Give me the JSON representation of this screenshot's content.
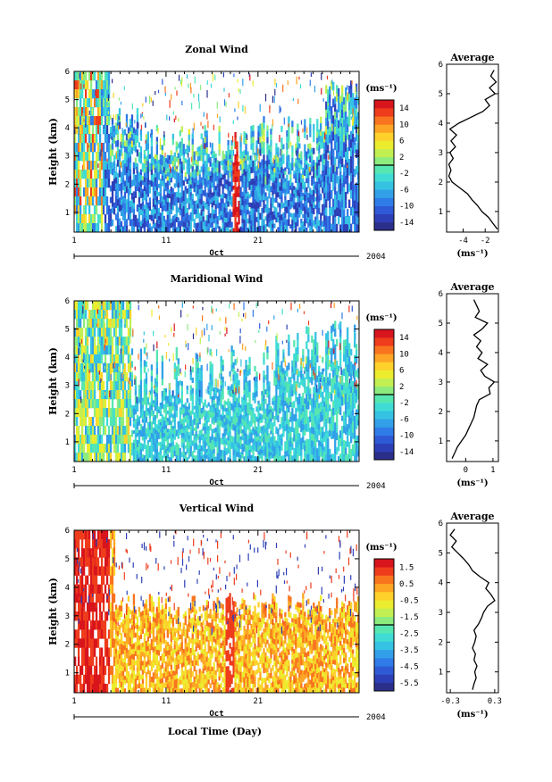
{
  "palette": [
    "#2b2f8a",
    "#2d3fb6",
    "#2e5ad6",
    "#2f7ce8",
    "#31a0e8",
    "#35c2e3",
    "#3fdcd6",
    "#56e6b0",
    "#8cec7e",
    "#c2ef52",
    "#ecec2e",
    "#fed22a",
    "#fda524",
    "#f8741e",
    "#ee3c1c",
    "#d8141c"
  ],
  "shared": {
    "time_label": "Local Time (Day)",
    "date_axis": {
      "ticks": [
        "1",
        "11",
        "21"
      ],
      "month": "Oct",
      "year": "2004"
    }
  },
  "chart_data": [
    {
      "id": "zonal",
      "type": "heatmap",
      "title": "Zonal Wind",
      "ylabel": "Height (km)",
      "ylim": [
        0.3,
        6
      ],
      "yticks": [
        "1",
        "2",
        "3",
        "4",
        "5",
        "6"
      ],
      "colorbar": {
        "unit": "(ms⁻¹)",
        "ticks": [
          "14",
          "10",
          "6",
          "2",
          "-2",
          "-6",
          "-10",
          "-14"
        ]
      },
      "profile": {
        "title": "Average",
        "xlabel": "(ms⁻¹)",
        "xlim": [
          -5.5,
          -0.8
        ],
        "xticks": [
          "-4",
          "-2"
        ],
        "yticks": [
          "1",
          "2",
          "3",
          "4",
          "5",
          "6"
        ],
        "y": [
          0.4,
          0.6,
          0.8,
          1.0,
          1.2,
          1.4,
          1.6,
          1.8,
          2.0,
          2.2,
          2.4,
          2.6,
          2.8,
          3.0,
          3.2,
          3.4,
          3.6,
          3.8,
          4.0,
          4.2,
          4.4,
          4.6,
          4.8,
          5.0,
          5.2,
          5.4,
          5.6,
          5.8
        ],
        "x": [
          -0.9,
          -1.3,
          -1.7,
          -2.3,
          -2.7,
          -3.2,
          -3.6,
          -4.3,
          -5.0,
          -5.3,
          -5.1,
          -5.3,
          -4.9,
          -5.2,
          -4.7,
          -5.1,
          -4.6,
          -5.2,
          -4.4,
          -3.3,
          -2.2,
          -1.6,
          -2.0,
          -1.1,
          -1.6,
          -1.0,
          -1.5,
          -1.2
        ]
      }
    },
    {
      "id": "meridional",
      "type": "heatmap",
      "title": "Maridional Wind",
      "ylabel": "Height (km)",
      "ylim": [
        0.3,
        6
      ],
      "yticks": [
        "1",
        "2",
        "3",
        "4",
        "5",
        "6"
      ],
      "colorbar": {
        "unit": "(ms⁻¹)",
        "ticks": [
          "14",
          "10",
          "6",
          "2",
          "-2",
          "-6",
          "-10",
          "-14"
        ]
      },
      "profile": {
        "title": "Average",
        "xlabel": "(ms⁻¹)",
        "xlim": [
          -0.7,
          1.2
        ],
        "xticks": [
          "0",
          "1"
        ],
        "yticks": [
          "1",
          "2",
          "3",
          "4",
          "5",
          "6"
        ],
        "y": [
          0.4,
          0.6,
          0.8,
          1.0,
          1.2,
          1.4,
          1.6,
          1.8,
          2.0,
          2.2,
          2.4,
          2.6,
          2.8,
          3.0,
          3.2,
          3.4,
          3.6,
          3.8,
          4.0,
          4.2,
          4.4,
          4.6,
          4.8,
          5.0,
          5.2,
          5.4,
          5.6,
          5.8
        ],
        "x": [
          -0.5,
          -0.4,
          -0.3,
          -0.15,
          0.0,
          0.1,
          0.2,
          0.3,
          0.35,
          0.4,
          0.5,
          0.9,
          0.85,
          1.05,
          0.7,
          0.55,
          0.8,
          0.45,
          0.6,
          0.4,
          0.55,
          0.3,
          0.6,
          0.8,
          0.35,
          0.5,
          0.4,
          0.3
        ]
      }
    },
    {
      "id": "vertical",
      "type": "heatmap",
      "title": "Vertical Wind",
      "ylabel": "Height (km)",
      "ylim": [
        0.3,
        6
      ],
      "yticks": [
        "1",
        "2",
        "3",
        "4",
        "5",
        "6"
      ],
      "colorbar": {
        "unit": "(ms⁻¹)",
        "ticks": [
          "1.5",
          "0.5",
          "-0.5",
          "-1.5",
          "-2.5",
          "-3.5",
          "-4.5",
          "-5.5"
        ]
      },
      "profile": {
        "title": "Average",
        "xlabel": "(ms⁻¹)",
        "xlim": [
          -0.35,
          0.35
        ],
        "xticks": [
          "-0.3",
          "0.3"
        ],
        "yticks": [
          "1",
          "2",
          "3",
          "4",
          "5",
          "6"
        ],
        "y": [
          0.4,
          0.6,
          0.8,
          1.0,
          1.2,
          1.4,
          1.6,
          1.8,
          2.0,
          2.2,
          2.4,
          2.6,
          2.8,
          3.0,
          3.2,
          3.4,
          3.6,
          3.8,
          4.0,
          4.2,
          4.4,
          4.6,
          4.8,
          5.0,
          5.2,
          5.4,
          5.6,
          5.8
        ],
        "x": [
          0.0,
          0.02,
          0.05,
          0.03,
          0.06,
          0.02,
          0.04,
          0.0,
          0.03,
          0.05,
          0.02,
          0.08,
          0.12,
          0.15,
          0.2,
          0.3,
          0.25,
          0.18,
          0.22,
          0.1,
          0.0,
          -0.05,
          -0.12,
          -0.2,
          -0.28,
          -0.22,
          -0.3,
          -0.24
        ]
      }
    }
  ]
}
